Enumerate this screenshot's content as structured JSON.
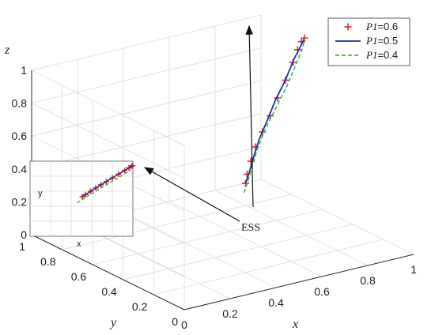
{
  "chart_data": {
    "type": "line3d",
    "xlabel": "x",
    "ylabel": "y",
    "zlabel": "z",
    "x_ticks": [
      "0",
      "0.2",
      "0.4",
      "0.6",
      "0.8",
      "1"
    ],
    "y_ticks": [
      "0",
      "0.2",
      "0.4",
      "0.6",
      "0.8",
      "1"
    ],
    "z_ticks": [
      "0",
      "0.2",
      "0.4",
      "0.6",
      "0.8",
      "1"
    ],
    "xlim": [
      0,
      1
    ],
    "ylim": [
      0,
      1
    ],
    "zlim": [
      0,
      1
    ],
    "grid": true,
    "legend_position": "top-right",
    "series": [
      {
        "name": "P1=0.6",
        "legend_name": "P1",
        "legend_value": "=0.6",
        "color": "#e8262a",
        "style": "plus-markers",
        "points": [
          [
            0.52,
            0.38,
            0.42
          ],
          [
            0.54,
            0.4,
            0.46
          ],
          [
            0.57,
            0.42,
            0.52
          ],
          [
            0.61,
            0.45,
            0.58
          ],
          [
            0.66,
            0.48,
            0.64
          ],
          [
            0.72,
            0.52,
            0.7
          ],
          [
            0.78,
            0.56,
            0.77
          ],
          [
            0.84,
            0.6,
            0.84
          ],
          [
            0.9,
            0.64,
            0.91
          ],
          [
            0.94,
            0.67,
            0.96
          ],
          [
            0.97,
            0.69,
            0.99
          ],
          [
            0.99,
            0.7,
            1.0
          ]
        ]
      },
      {
        "name": "P1=0.5",
        "legend_name": "P1",
        "legend_value": "=0.5",
        "color": "#1f2fa3",
        "style": "solid",
        "points": [
          [
            0.52,
            0.38,
            0.42
          ],
          [
            0.55,
            0.4,
            0.47
          ],
          [
            0.59,
            0.43,
            0.54
          ],
          [
            0.64,
            0.47,
            0.61
          ],
          [
            0.7,
            0.51,
            0.68
          ],
          [
            0.77,
            0.56,
            0.76
          ],
          [
            0.84,
            0.6,
            0.84
          ],
          [
            0.91,
            0.65,
            0.92
          ],
          [
            0.96,
            0.68,
            0.97
          ],
          [
            0.99,
            0.7,
            1.0
          ]
        ]
      },
      {
        "name": "P1=0.4",
        "legend_name": "P1",
        "legend_value": "=0.4",
        "color": "#2ec23a",
        "style": "dashed",
        "points": [
          [
            0.5,
            0.36,
            0.38
          ],
          [
            0.52,
            0.37,
            0.42
          ],
          [
            0.56,
            0.4,
            0.49
          ],
          [
            0.62,
            0.45,
            0.57
          ],
          [
            0.69,
            0.5,
            0.65
          ],
          [
            0.77,
            0.55,
            0.73
          ],
          [
            0.85,
            0.6,
            0.81
          ],
          [
            0.92,
            0.65,
            0.89
          ],
          [
            0.97,
            0.68,
            0.96
          ],
          [
            0.99,
            0.7,
            1.0
          ]
        ]
      }
    ],
    "annotation": {
      "text": "ESS"
    },
    "inset": {
      "xlabel": "x",
      "ylabel": "y"
    }
  }
}
